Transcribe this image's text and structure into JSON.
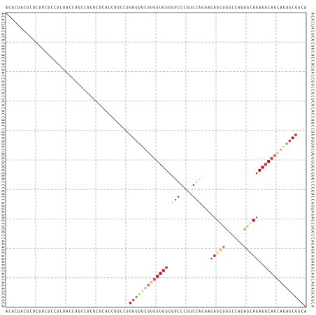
{
  "chart_data": {
    "type": "dotplot",
    "sequence": "ACACUACUCUCUUCUCCUCUACCUGCCUCUCUCACCUUCCUGUGUUCUUGGUGGGUUCCCGUCCAGUAGAGCUGGCCAGAGCAGAGGCAGCAGAGCGGCA",
    "xlim": [
      0,
      100
    ],
    "ylim": [
      0,
      100
    ],
    "xticks": [
      10,
      20,
      30,
      40,
      50,
      60,
      70,
      80,
      90
    ],
    "yticks": [
      10,
      20,
      30,
      40,
      50,
      60,
      70,
      80,
      90
    ],
    "grid": true,
    "points": [
      {
        "i": 54,
        "j": 83,
        "p": 0.3,
        "color": "#cc2222"
      },
      {
        "i": 53,
        "j": 84,
        "p": 0.8,
        "color": "#aa1111"
      },
      {
        "i": 52,
        "j": 85,
        "p": 0.9,
        "color": "#bb1515"
      },
      {
        "i": 51,
        "j": 86,
        "p": 0.9,
        "color": "#dd3333"
      },
      {
        "i": 50,
        "j": 87,
        "p": 0.9,
        "color": "#bb1515"
      },
      {
        "i": 49,
        "j": 88,
        "p": 0.8,
        "color": "#cc4444"
      },
      {
        "i": 48,
        "j": 89,
        "p": 0.7,
        "color": "#dd5566"
      },
      {
        "i": 47,
        "j": 90,
        "p": 0.6,
        "color": "#dddd55"
      },
      {
        "i": 46,
        "j": 91,
        "p": 0.4,
        "color": "#ee8888"
      },
      {
        "i": 45,
        "j": 92,
        "p": 0.2,
        "color": "#ffaa55"
      },
      {
        "i": 44,
        "j": 93,
        "p": 0.5,
        "color": "#55bb33"
      },
      {
        "i": 43,
        "j": 94,
        "p": 0.6,
        "color": "#dd3333"
      },
      {
        "i": 42,
        "j": 95,
        "p": 0.7,
        "color": "#aa1111"
      },
      {
        "i": 41,
        "j": 96,
        "p": 0.6,
        "color": "#cc2222"
      },
      {
        "i": 25,
        "j": 97,
        "p": 0.02,
        "color": "#cc8888"
      },
      {
        "i": 58,
        "j": 62,
        "p": 0.2,
        "color": "#aa1111"
      },
      {
        "i": 57,
        "j": 63,
        "p": 0.2,
        "color": "#ff9933"
      },
      {
        "i": 56,
        "j": 64,
        "p": 0.15,
        "color": "#ffbb66"
      },
      {
        "i": 55,
        "j": 65,
        "p": 0.05,
        "color": "#ff9933"
      },
      {
        "i": 64,
        "j": 55,
        "p": 0.15,
        "color": "#ffaa44"
      },
      {
        "i": 63,
        "j": 56,
        "p": 0.2,
        "color": "#dd3333"
      },
      {
        "i": 62,
        "j": 57,
        "p": 0.2,
        "color": "#aa1111"
      },
      {
        "i": 98,
        "j": 41,
        "p": 0.6,
        "color": "#cc2222"
      },
      {
        "i": 97,
        "j": 42,
        "p": 0.5,
        "color": "#dd3333"
      },
      {
        "i": 96,
        "j": 43,
        "p": 0.5,
        "color": "#55bb33"
      },
      {
        "i": 95,
        "j": 44,
        "p": 0.4,
        "color": "#cccc44"
      },
      {
        "i": 94,
        "j": 45,
        "p": 0.2,
        "color": "#ee8888"
      },
      {
        "i": 93,
        "j": 46,
        "p": 0.5,
        "color": "#ddbb55"
      },
      {
        "i": 92,
        "j": 47,
        "p": 0.6,
        "color": "#dd6644"
      },
      {
        "i": 91,
        "j": 48,
        "p": 0.7,
        "color": "#ddcc55"
      },
      {
        "i": 90,
        "j": 49,
        "p": 0.8,
        "color": "#dd5566"
      },
      {
        "i": 89,
        "j": 50,
        "p": 0.9,
        "color": "#cc2222"
      },
      {
        "i": 88,
        "j": 51,
        "p": 0.9,
        "color": "#aa1111"
      },
      {
        "i": 87,
        "j": 52,
        "p": 0.9,
        "color": "#cc2222"
      },
      {
        "i": 86,
        "j": 53,
        "p": 0.6,
        "color": "#cc2222"
      },
      {
        "i": 83,
        "j": 68,
        "p": 0.2,
        "color": "#aa1111"
      },
      {
        "i": 82,
        "j": 69,
        "p": 0.6,
        "color": "#cc2222"
      },
      {
        "i": 81,
        "j": 70,
        "p": 0.6,
        "color": "#dddd66"
      },
      {
        "i": 80,
        "j": 71,
        "p": 0.5,
        "color": "#ddbb55"
      },
      {
        "i": 79,
        "j": 72,
        "p": 0.4,
        "color": "#dd5566"
      },
      {
        "i": 74,
        "j": 78,
        "p": 0.05,
        "color": "#eecc88"
      },
      {
        "i": 73,
        "j": 79,
        "p": 0.4,
        "color": "#ee7788"
      },
      {
        "i": 72,
        "j": 80,
        "p": 0.5,
        "color": "#ddcc55"
      },
      {
        "i": 71,
        "j": 81,
        "p": 0.4,
        "color": "#eedd88"
      },
      {
        "i": 70,
        "j": 82,
        "p": 0.8,
        "color": "#aa1111"
      },
      {
        "i": 69,
        "j": 83,
        "p": 0.2,
        "color": "#cc2222"
      }
    ]
  }
}
